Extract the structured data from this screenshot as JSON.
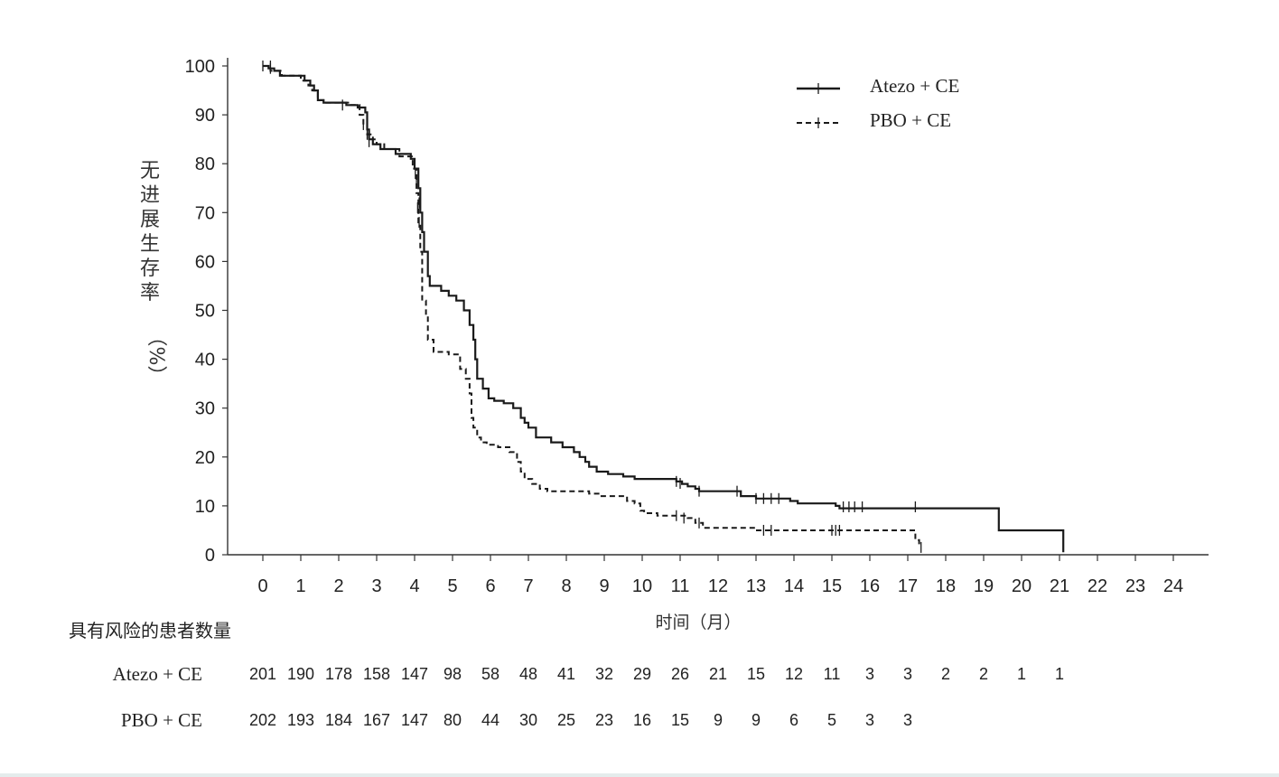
{
  "chart_data": {
    "type": "line",
    "subtype": "kaplan-meier",
    "ylabel_chars": [
      "无",
      "进",
      "展",
      "生",
      "存",
      "率"
    ],
    "ylabel_unit": "（%）",
    "xlabel": "时间（月）",
    "ylim": [
      0,
      100
    ],
    "xlim": [
      0,
      24
    ],
    "y_ticks": [
      0,
      10,
      20,
      30,
      40,
      50,
      60,
      70,
      80,
      90,
      100
    ],
    "x_ticks": [
      0,
      1,
      2,
      3,
      4,
      5,
      6,
      7,
      8,
      9,
      10,
      11,
      12,
      13,
      14,
      15,
      16,
      17,
      18,
      19,
      20,
      21,
      22,
      23,
      24
    ],
    "legend_position": "top-right",
    "series": [
      {
        "name": "Atezo + CE",
        "style": "solid",
        "color": "#1a1a1a",
        "steps": [
          [
            0,
            100
          ],
          [
            0.15,
            99.5
          ],
          [
            0.3,
            99
          ],
          [
            0.45,
            98
          ],
          [
            1.1,
            97
          ],
          [
            1.25,
            96
          ],
          [
            1.35,
            95
          ],
          [
            1.45,
            93
          ],
          [
            1.6,
            92.5
          ],
          [
            2.2,
            92
          ],
          [
            2.5,
            91.5
          ],
          [
            2.7,
            90.5
          ],
          [
            2.75,
            87
          ],
          [
            2.8,
            85
          ],
          [
            2.9,
            84
          ],
          [
            3.1,
            83
          ],
          [
            3.5,
            82
          ],
          [
            3.9,
            81
          ],
          [
            4.0,
            79
          ],
          [
            4.1,
            75
          ],
          [
            4.15,
            70
          ],
          [
            4.2,
            66
          ],
          [
            4.25,
            62
          ],
          [
            4.35,
            57
          ],
          [
            4.4,
            55
          ],
          [
            4.7,
            54
          ],
          [
            4.9,
            53
          ],
          [
            5.1,
            52
          ],
          [
            5.3,
            50
          ],
          [
            5.45,
            47
          ],
          [
            5.55,
            44
          ],
          [
            5.6,
            40
          ],
          [
            5.65,
            36
          ],
          [
            5.8,
            34
          ],
          [
            5.95,
            32
          ],
          [
            6.1,
            31.5
          ],
          [
            6.35,
            31
          ],
          [
            6.6,
            30
          ],
          [
            6.8,
            28
          ],
          [
            6.9,
            27
          ],
          [
            7.0,
            26
          ],
          [
            7.2,
            24
          ],
          [
            7.6,
            23
          ],
          [
            7.9,
            22
          ],
          [
            8.2,
            21
          ],
          [
            8.35,
            20
          ],
          [
            8.5,
            19
          ],
          [
            8.6,
            18
          ],
          [
            8.8,
            17
          ],
          [
            9.1,
            16.5
          ],
          [
            9.5,
            16
          ],
          [
            9.8,
            15.5
          ],
          [
            10.9,
            15
          ],
          [
            11.05,
            14.5
          ],
          [
            11.2,
            14
          ],
          [
            11.4,
            13.5
          ],
          [
            11.5,
            13
          ],
          [
            12.6,
            12
          ],
          [
            13.0,
            11.5
          ],
          [
            13.9,
            11
          ],
          [
            14.1,
            10.5
          ],
          [
            15.1,
            10
          ],
          [
            15.2,
            9.5
          ],
          [
            19.4,
            9.5
          ],
          [
            19.4,
            5
          ],
          [
            21.1,
            5
          ],
          [
            21.1,
            0.5
          ]
        ],
        "censors": [
          [
            0,
            100
          ],
          [
            0.2,
            99.5
          ],
          [
            2.1,
            92
          ],
          [
            2.75,
            86
          ],
          [
            2.8,
            84.5
          ],
          [
            4.02,
            78
          ],
          [
            4.05,
            76
          ],
          [
            4.12,
            72
          ],
          [
            10.9,
            15
          ],
          [
            11.0,
            14.6
          ],
          [
            11.5,
            13
          ],
          [
            12.5,
            13
          ],
          [
            13.0,
            11.5
          ],
          [
            13.2,
            11.5
          ],
          [
            13.4,
            11.5
          ],
          [
            13.6,
            11.5
          ],
          [
            15.3,
            9.8
          ],
          [
            15.45,
            9.8
          ],
          [
            15.6,
            9.8
          ],
          [
            15.8,
            9.8
          ],
          [
            17.2,
            9.8
          ]
        ]
      },
      {
        "name": "PBO + CE",
        "style": "dashed",
        "color": "#1a1a1a",
        "steps": [
          [
            0,
            100
          ],
          [
            0.2,
            99
          ],
          [
            0.5,
            98
          ],
          [
            1.0,
            97
          ],
          [
            1.2,
            96
          ],
          [
            1.3,
            95
          ],
          [
            1.45,
            93
          ],
          [
            1.6,
            92.5
          ],
          [
            2.3,
            92
          ],
          [
            2.55,
            90
          ],
          [
            2.65,
            88
          ],
          [
            2.75,
            86
          ],
          [
            2.9,
            85
          ],
          [
            3.0,
            84
          ],
          [
            3.2,
            83
          ],
          [
            3.6,
            81.5
          ],
          [
            3.95,
            79
          ],
          [
            4.05,
            74
          ],
          [
            4.1,
            68
          ],
          [
            4.15,
            62
          ],
          [
            4.2,
            52
          ],
          [
            4.3,
            49
          ],
          [
            4.35,
            44
          ],
          [
            4.5,
            41.5
          ],
          [
            4.9,
            41
          ],
          [
            5.2,
            38
          ],
          [
            5.35,
            36
          ],
          [
            5.45,
            33
          ],
          [
            5.5,
            28
          ],
          [
            5.55,
            26
          ],
          [
            5.65,
            24
          ],
          [
            5.75,
            23
          ],
          [
            5.9,
            22.5
          ],
          [
            6.2,
            22
          ],
          [
            6.5,
            21
          ],
          [
            6.7,
            19
          ],
          [
            6.8,
            17
          ],
          [
            6.9,
            15.5
          ],
          [
            7.1,
            14.5
          ],
          [
            7.3,
            13.5
          ],
          [
            7.5,
            13
          ],
          [
            8.6,
            12.5
          ],
          [
            8.9,
            12
          ],
          [
            9.6,
            11
          ],
          [
            9.8,
            10.5
          ],
          [
            9.95,
            9
          ],
          [
            10.05,
            8.5
          ],
          [
            10.4,
            8
          ],
          [
            11.2,
            7.5
          ],
          [
            11.4,
            6.5
          ],
          [
            11.6,
            5.5
          ],
          [
            13.0,
            5
          ],
          [
            17.15,
            5
          ],
          [
            17.2,
            3
          ],
          [
            17.3,
            1.5
          ]
        ],
        "censors": [
          [
            0.2,
            100
          ],
          [
            2.65,
            88
          ],
          [
            4.08,
            71
          ],
          [
            4.12,
            68
          ],
          [
            10.9,
            8
          ],
          [
            11.1,
            7.5
          ],
          [
            11.5,
            6.5
          ],
          [
            13.2,
            5
          ],
          [
            13.4,
            5
          ],
          [
            15.0,
            5
          ],
          [
            15.1,
            5
          ],
          [
            15.2,
            5
          ],
          [
            17.35,
            1.5
          ]
        ]
      }
    ],
    "risk_table": {
      "title": "具有风险的患者数量",
      "rows": [
        {
          "name": "Atezo + CE",
          "values": [
            "201",
            "190",
            "178",
            "158",
            "147",
            "98",
            "58",
            "48",
            "41",
            "32",
            "29",
            "26",
            "21",
            "15",
            "12",
            "11",
            "3",
            "3",
            "2",
            "2",
            "1",
            "1"
          ]
        },
        {
          "name": "PBO + CE",
          "values": [
            "202",
            "193",
            "184",
            "167",
            "147",
            "80",
            "44",
            "30",
            "25",
            "23",
            "16",
            "15",
            "9",
            "9",
            "6",
            "5",
            "3",
            "3"
          ]
        }
      ]
    }
  }
}
